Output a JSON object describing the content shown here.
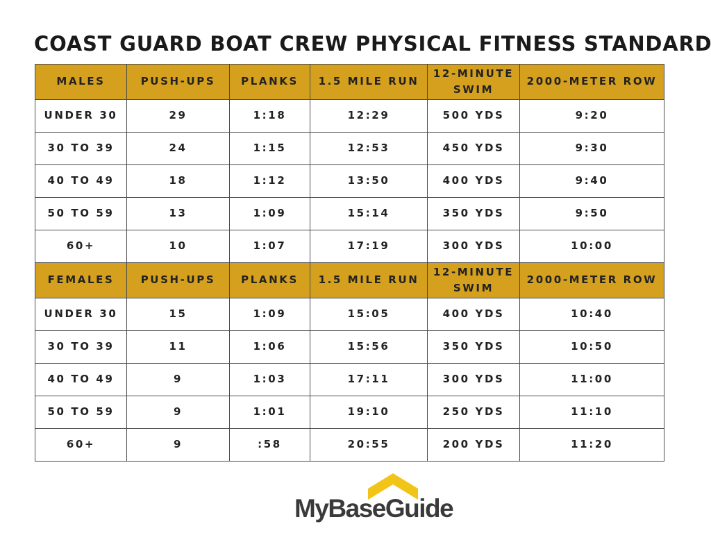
{
  "title": "COAST GUARD BOAT CREW PHYSICAL FITNESS STANDARDS",
  "colors": {
    "header_fill": "#d4a01e",
    "border": "#4a4a4a",
    "logo_roof": "#f2c418",
    "logo_text": "#3a3a3a"
  },
  "males": {
    "headers": [
      "MALES",
      "PUSH-UPS",
      "PLANKS",
      "1.5 MILE RUN",
      "12-MINUTE SWIM",
      "2000-METER ROW"
    ],
    "rows": [
      [
        "UNDER 30",
        "29",
        "1:18",
        "12:29",
        "500 YDS",
        "9:20"
      ],
      [
        "30 TO 39",
        "24",
        "1:15",
        "12:53",
        "450 YDS",
        "9:30"
      ],
      [
        "40 TO 49",
        "18",
        "1:12",
        "13:50",
        "400 YDS",
        "9:40"
      ],
      [
        "50 TO 59",
        "13",
        "1:09",
        "15:14",
        "350 YDS",
        "9:50"
      ],
      [
        "60+",
        "10",
        "1:07",
        "17:19",
        "300 YDS",
        "10:00"
      ]
    ]
  },
  "females": {
    "headers": [
      "FEMALES",
      "PUSH-UPS",
      "PLANKS",
      "1.5 MILE RUN",
      "12-MINUTE SWIM",
      "2000-METER ROW"
    ],
    "rows": [
      [
        "UNDER 30",
        "15",
        "1:09",
        "15:05",
        "400 YDS",
        "10:40"
      ],
      [
        "30 TO 39",
        "11",
        "1:06",
        "15:56",
        "350 YDS",
        "10:50"
      ],
      [
        "40 TO 49",
        "9",
        "1:03",
        "17:11",
        "300 YDS",
        "11:00"
      ],
      [
        "50 TO 59",
        "9",
        "1:01",
        "19:10",
        "250 YDS",
        "11:10"
      ],
      [
        "60+",
        "9",
        ":58",
        "20:55",
        "200 YDS",
        "11:20"
      ]
    ]
  },
  "logo": {
    "text": "MyBaseGuide",
    "icon": "house-roof-stars-icon"
  }
}
